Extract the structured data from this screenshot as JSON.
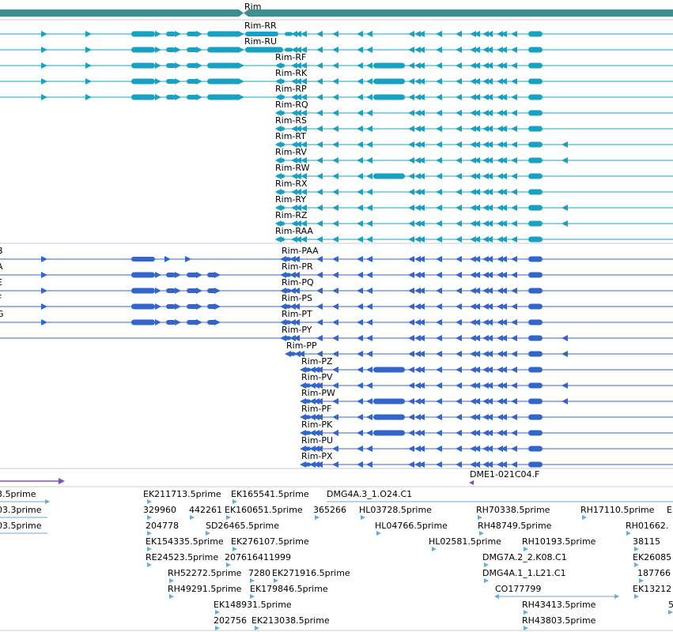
{
  "colors": {
    "gene": "#3d8f8f",
    "rna": "#17a2c4",
    "protein": "#3366cc",
    "feature": "#7a52b3",
    "est": "#6aaad8",
    "divider": "#cccccc"
  },
  "gene": {
    "label": "Rim"
  },
  "rna_tracks": [
    {
      "label": "Rim-RR"
    },
    {
      "label": "Rim-RU"
    },
    {
      "label": "Rim-RF"
    },
    {
      "label": "Rim-RK"
    },
    {
      "label": "Rim-RP"
    },
    {
      "label": "Rim-RQ"
    },
    {
      "label": "Rim-RS"
    },
    {
      "label": "Rim-RT"
    },
    {
      "label": "Rim-RV"
    },
    {
      "label": "Rim-RW"
    },
    {
      "label": "Rim-RX"
    },
    {
      "label": "Rim-RY"
    },
    {
      "label": "Rim-RZ"
    },
    {
      "label": "Rim-RAA"
    }
  ],
  "protein_tracks": [
    {
      "label": "Rim-PAA"
    },
    {
      "label": "Rim-PR"
    },
    {
      "label": "Rim-PQ"
    },
    {
      "label": "Rim-PS"
    },
    {
      "label": "Rim-PT"
    },
    {
      "label": "Rim-PY"
    },
    {
      "label": "Rim-PP"
    },
    {
      "label": "Rim-PZ"
    },
    {
      "label": "Rim-PV"
    },
    {
      "label": "Rim-PW"
    },
    {
      "label": "Rim-PF"
    },
    {
      "label": "Rim-PK"
    },
    {
      "label": "Rim-PU"
    },
    {
      "label": "Rim-PX"
    }
  ],
  "protein_left_fragments": [
    "B",
    "A",
    "E",
    "F",
    "G"
  ],
  "feature": {
    "label": "DME1-021C04.F"
  },
  "est_labels": [
    "3.5prime",
    "03.3prime",
    "03.5prime",
    "EK211713.5prime",
    "329960",
    "204778",
    "EK154335.5prime",
    "RE24523.5prime",
    "RH52272.5prime",
    "RH49291.5prime",
    "442261",
    "EK165541.5prime",
    "EK160651.5prime",
    "SD26465.5prime",
    "EK276107.5prime",
    "207616411999",
    "7280",
    "EK179846.5prime",
    "EK148931.5prime",
    "202756",
    "EK271916.5prime",
    "EK213038.5prime",
    "365266",
    "DMG4A.3_1.O24.C1",
    "HL03728.5prime",
    "HL04766.5prime",
    "HL02581.5prime",
    "RH70338.5prime",
    "RH48749.5prime",
    "RH10193.5prime",
    "DMG7A.2_2.K08.C1",
    "DMG4A.1_1.L21.C1",
    "CO177799",
    "RH43413.5prime",
    "RH43803.5prime",
    "RH17110.5prime",
    "E",
    "RH01662.",
    "38115",
    "EK26085",
    "187766",
    "EK13212",
    "5"
  ]
}
